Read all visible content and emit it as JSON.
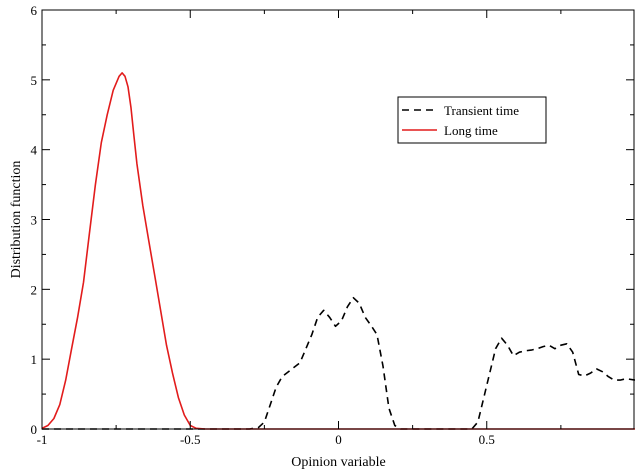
{
  "chart_data": {
    "type": "line",
    "title": "",
    "xlabel": "Opinion variable",
    "ylabel": "Distribution function",
    "xlim": [
      -1,
      1
    ],
    "ylim": [
      0,
      6
    ],
    "x_ticks": [
      {
        "value": -1,
        "label": "-1"
      },
      {
        "value": -0.5,
        "label": "-0.5"
      },
      {
        "value": 0,
        "label": "0"
      },
      {
        "value": 0.5,
        "label": "0.5"
      }
    ],
    "y_ticks": [
      {
        "value": 0,
        "label": "0"
      },
      {
        "value": 1,
        "label": "1"
      },
      {
        "value": 2,
        "label": "2"
      },
      {
        "value": 3,
        "label": "3"
      },
      {
        "value": 4,
        "label": "4"
      },
      {
        "value": 5,
        "label": "5"
      },
      {
        "value": 6,
        "label": "6"
      }
    ],
    "grid": false,
    "legend_position": "upper-right",
    "series": [
      {
        "name": "Transient time",
        "color": "#000000",
        "dash": "dashed",
        "x": [
          -1,
          -0.3,
          -0.27,
          -0.25,
          -0.23,
          -0.21,
          -0.19,
          -0.16,
          -0.13,
          -0.11,
          -0.09,
          -0.07,
          -0.05,
          -0.03,
          -0.01,
          0.01,
          0.03,
          0.05,
          0.07,
          0.09,
          0.11,
          0.13,
          0.15,
          0.17,
          0.19,
          0.21,
          0.23,
          0.3,
          0.45,
          0.47,
          0.49,
          0.51,
          0.53,
          0.55,
          0.57,
          0.59,
          0.61,
          0.63,
          0.65,
          0.67,
          0.69,
          0.71,
          0.73,
          0.75,
          0.77,
          0.79,
          0.81,
          0.83,
          0.85,
          0.87,
          0.89,
          0.91,
          0.93,
          0.95,
          0.97,
          1.0
        ],
        "y": [
          0,
          0,
          0.02,
          0.1,
          0.35,
          0.6,
          0.75,
          0.85,
          0.95,
          1.15,
          1.35,
          1.6,
          1.7,
          1.6,
          1.47,
          1.55,
          1.75,
          1.88,
          1.8,
          1.6,
          1.48,
          1.35,
          0.9,
          0.3,
          0.05,
          0,
          0,
          0,
          0,
          0.1,
          0.45,
          0.8,
          1.15,
          1.3,
          1.2,
          1.05,
          1.1,
          1.12,
          1.13,
          1.15,
          1.18,
          1.2,
          1.15,
          1.2,
          1.22,
          1.1,
          0.78,
          0.76,
          0.8,
          0.86,
          0.82,
          0.75,
          0.7,
          0.7,
          0.72,
          0.7
        ]
      },
      {
        "name": "Long time",
        "color": "#e21c1c",
        "dash": "solid",
        "x": [
          -1,
          -0.98,
          -0.96,
          -0.94,
          -0.92,
          -0.9,
          -0.88,
          -0.86,
          -0.84,
          -0.82,
          -0.8,
          -0.78,
          -0.76,
          -0.74,
          -0.73,
          -0.72,
          -0.71,
          -0.7,
          -0.69,
          -0.68,
          -0.66,
          -0.64,
          -0.62,
          -0.6,
          -0.58,
          -0.56,
          -0.54,
          -0.52,
          -0.5,
          -0.48,
          -0.45,
          1.0
        ],
        "y": [
          0.01,
          0.05,
          0.15,
          0.35,
          0.7,
          1.15,
          1.6,
          2.1,
          2.8,
          3.5,
          4.1,
          4.5,
          4.85,
          5.05,
          5.1,
          5.05,
          4.9,
          4.6,
          4.2,
          3.8,
          3.2,
          2.7,
          2.2,
          1.7,
          1.2,
          0.8,
          0.45,
          0.2,
          0.05,
          0.01,
          0,
          0
        ]
      }
    ]
  }
}
